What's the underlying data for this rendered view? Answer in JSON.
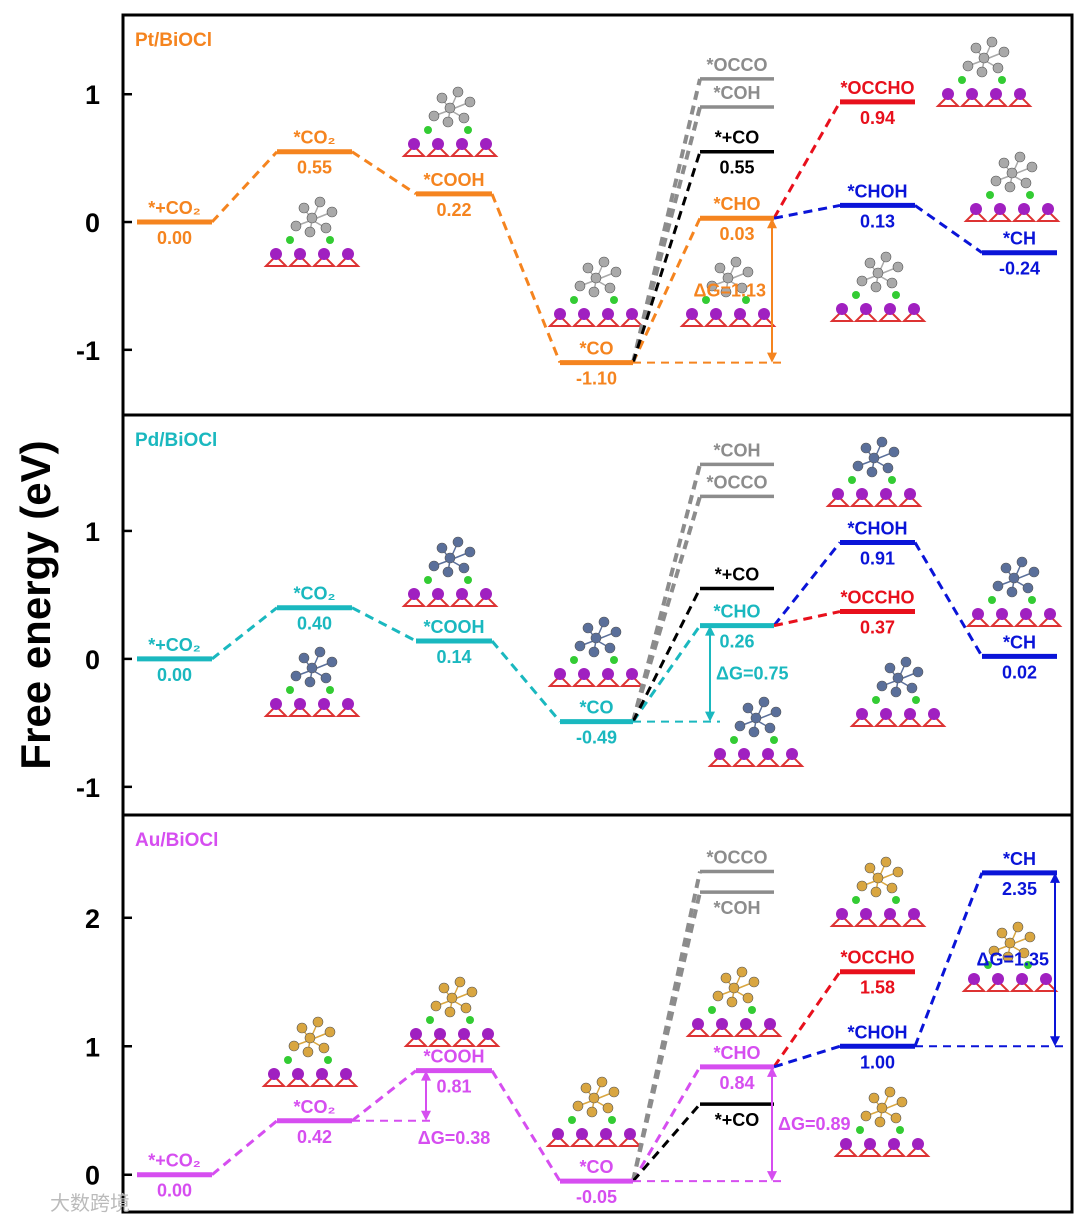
{
  "watermark": "大数跨境",
  "chart_data": {
    "type": "energy-diagram",
    "ylabel": "Free energy (eV)",
    "panels": [
      {
        "title": "Pt/BiOCl",
        "color": "#f5841f",
        "cluster_color": "#a9a9a9",
        "ylim": [
          -1.51,
          1.62
        ],
        "ticks": [
          {
            "v": -1,
            "label": "-1"
          },
          {
            "v": 0,
            "label": "0"
          },
          {
            "v": 1,
            "label": "1"
          }
        ],
        "levels": [
          {
            "id": "s0",
            "label": "*+CO₂",
            "value": 0.0,
            "value_label": "0.00",
            "col": 0,
            "color": "#f5841f",
            "pos": "above"
          },
          {
            "id": "s1",
            "label": "*CO₂",
            "value": 0.55,
            "value_label": "0.55",
            "col": 1,
            "color": "#f5841f",
            "pos": "above"
          },
          {
            "id": "s2",
            "label": "*COOH",
            "value": 0.22,
            "value_label": "0.22",
            "col": 2,
            "color": "#f5841f",
            "pos": "above"
          },
          {
            "id": "s3",
            "label": "*CO",
            "value": -1.1,
            "value_label": "-1.10",
            "col": 3,
            "color": "#f5841f",
            "pos": "above"
          },
          {
            "id": "s4",
            "label": "*CHO",
            "value": 0.03,
            "value_label": "0.03",
            "col": 4,
            "color": "#f5841f",
            "pos": "above"
          },
          {
            "id": "occo",
            "label": "*OCCO",
            "value": 1.12,
            "value_label": null,
            "col": 4,
            "color": "#8c8c8c",
            "pos": "above"
          },
          {
            "id": "coh",
            "label": "*COH",
            "value": 0.9,
            "value_label": null,
            "col": 4,
            "color": "#8c8c8c",
            "pos": "above"
          },
          {
            "id": "pco",
            "label": "*+CO",
            "value": 0.55,
            "value_label": "0.55",
            "col": 4,
            "color": "#000000",
            "pos": "above"
          },
          {
            "id": "occho",
            "label": "*OCCHO",
            "value": 0.94,
            "value_label": "0.94",
            "col": 5,
            "color": "#e8101c",
            "pos": "above"
          },
          {
            "id": "choh",
            "label": "*CHOH",
            "value": 0.13,
            "value_label": "0.13",
            "col": 5,
            "color": "#0a14d8",
            "pos": "above"
          },
          {
            "id": "ch",
            "label": "*CH",
            "value": -0.24,
            "value_label": "-0.24",
            "col": 6,
            "color": "#0a14d8",
            "pos": "above"
          }
        ],
        "links": [
          {
            "from": "s0",
            "to": "s1",
            "color": "#f5841f"
          },
          {
            "from": "s1",
            "to": "s2",
            "color": "#f5841f"
          },
          {
            "from": "s2",
            "to": "s3",
            "color": "#f5841f"
          },
          {
            "from": "s3",
            "to": "s4",
            "color": "#f5841f"
          },
          {
            "from": "s3",
            "to": "occo",
            "color": "#8c8c8c"
          },
          {
            "from": "s3",
            "to": "coh",
            "color": "#8c8c8c"
          },
          {
            "from": "s3",
            "to": "pco",
            "color": "#000000"
          },
          {
            "from": "s4",
            "to": "occho",
            "color": "#e8101c"
          },
          {
            "from": "s4",
            "to": "choh",
            "color": "#0a14d8"
          },
          {
            "from": "choh",
            "to": "ch",
            "color": "#0a14d8"
          }
        ],
        "delta_g": [
          {
            "label": "ΔG=1.13",
            "from": "s3",
            "to": "s4",
            "color": "#f5841f",
            "arrow_at": "col4-right",
            "text_side": "left"
          }
        ]
      },
      {
        "title": "Pd/BiOCl",
        "color": "#1ab8bf",
        "cluster_color": "#5a6f9a",
        "ylim": [
          -1.22,
          1.906
        ],
        "ticks": [
          {
            "v": -1,
            "label": "-1"
          },
          {
            "v": 0,
            "label": "0"
          },
          {
            "v": 1,
            "label": "1"
          }
        ],
        "levels": [
          {
            "id": "s0",
            "label": "*+CO₂",
            "value": 0.0,
            "value_label": "0.00",
            "col": 0,
            "color": "#1ab8bf",
            "pos": "above"
          },
          {
            "id": "s1",
            "label": "*CO₂",
            "value": 0.4,
            "value_label": "0.40",
            "col": 1,
            "color": "#1ab8bf",
            "pos": "above"
          },
          {
            "id": "s2",
            "label": "*COOH",
            "value": 0.14,
            "value_label": "0.14",
            "col": 2,
            "color": "#1ab8bf",
            "pos": "above"
          },
          {
            "id": "s3",
            "label": "*CO",
            "value": -0.49,
            "value_label": "-0.49",
            "col": 3,
            "color": "#1ab8bf",
            "pos": "above"
          },
          {
            "id": "s4",
            "label": "*CHO",
            "value": 0.26,
            "value_label": "0.26",
            "col": 4,
            "color": "#1ab8bf",
            "pos": "above"
          },
          {
            "id": "coh",
            "label": "*COH",
            "value": 1.52,
            "value_label": null,
            "col": 4,
            "color": "#8c8c8c",
            "pos": "above"
          },
          {
            "id": "occo",
            "label": "*OCCO",
            "value": 1.27,
            "value_label": null,
            "col": 4,
            "color": "#8c8c8c",
            "pos": "above"
          },
          {
            "id": "pco",
            "label": "*+CO",
            "value": 0.55,
            "value_label": null,
            "col": 4,
            "color": "#000000",
            "pos": "above"
          },
          {
            "id": "choh",
            "label": "*CHOH",
            "value": 0.91,
            "value_label": "0.91",
            "col": 5,
            "color": "#0a14d8",
            "pos": "above"
          },
          {
            "id": "occho",
            "label": "*OCCHO",
            "value": 0.37,
            "value_label": "0.37",
            "col": 5,
            "color": "#e8101c",
            "pos": "above"
          },
          {
            "id": "ch",
            "label": "*CH",
            "value": 0.02,
            "value_label": "0.02",
            "col": 6,
            "color": "#0a14d8",
            "pos": "above"
          }
        ],
        "links": [
          {
            "from": "s0",
            "to": "s1",
            "color": "#1ab8bf"
          },
          {
            "from": "s1",
            "to": "s2",
            "color": "#1ab8bf"
          },
          {
            "from": "s2",
            "to": "s3",
            "color": "#1ab8bf"
          },
          {
            "from": "s3",
            "to": "s4",
            "color": "#1ab8bf"
          },
          {
            "from": "s3",
            "to": "coh",
            "color": "#8c8c8c"
          },
          {
            "from": "s3",
            "to": "occo",
            "color": "#8c8c8c"
          },
          {
            "from": "s3",
            "to": "pco",
            "color": "#000000"
          },
          {
            "from": "s4",
            "to": "choh",
            "color": "#0a14d8"
          },
          {
            "from": "s4",
            "to": "occho",
            "color": "#e8101c"
          },
          {
            "from": "choh",
            "to": "ch",
            "color": "#0a14d8"
          }
        ],
        "delta_g": [
          {
            "label": "ΔG=0.75",
            "from": "s3",
            "to": "s4",
            "color": "#1ab8bf",
            "arrow_at": "col4-left",
            "text_side": "right"
          }
        ]
      },
      {
        "title": "Au/BiOCl",
        "color": "#d64ef0",
        "cluster_color": "#d9a640",
        "ylim": [
          -0.29,
          2.8
        ],
        "ticks": [
          {
            "v": 0,
            "label": "0"
          },
          {
            "v": 1,
            "label": "1"
          },
          {
            "v": 2,
            "label": "2"
          }
        ],
        "levels": [
          {
            "id": "s0",
            "label": "*+CO₂",
            "value": 0.0,
            "value_label": "0.00",
            "col": 0,
            "color": "#d64ef0",
            "pos": "above"
          },
          {
            "id": "s1",
            "label": "*CO₂",
            "value": 0.42,
            "value_label": "0.42",
            "col": 1,
            "color": "#d64ef0",
            "pos": "above"
          },
          {
            "id": "s2",
            "label": "*COOH",
            "value": 0.81,
            "value_label": "0.81",
            "col": 2,
            "color": "#d64ef0",
            "pos": "above"
          },
          {
            "id": "s3",
            "label": "*CO",
            "value": -0.05,
            "value_label": "-0.05",
            "col": 3,
            "color": "#d64ef0",
            "pos": "above"
          },
          {
            "id": "s4",
            "label": "*CHO",
            "value": 0.84,
            "value_label": "0.84",
            "col": 4,
            "color": "#d64ef0",
            "pos": "above"
          },
          {
            "id": "occo",
            "label": "*OCCO",
            "value": 2.36,
            "value_label": null,
            "col": 4,
            "color": "#8c8c8c",
            "pos": "above"
          },
          {
            "id": "coh",
            "label": "*COH",
            "value": 2.2,
            "value_label": null,
            "col": 4,
            "color": "#8c8c8c",
            "pos": "below"
          },
          {
            "id": "pco",
            "label": "*+CO",
            "value": 0.55,
            "value_label": null,
            "col": 4,
            "color": "#000000",
            "pos": "below"
          },
          {
            "id": "occho",
            "label": "*OCCHO",
            "value": 1.58,
            "value_label": "1.58",
            "col": 5,
            "color": "#e8101c",
            "pos": "above"
          },
          {
            "id": "choh",
            "label": "*CHOH",
            "value": 1.0,
            "value_label": "1.00",
            "col": 5,
            "color": "#0a14d8",
            "pos": "above"
          },
          {
            "id": "ch",
            "label": "*CH",
            "value": 2.35,
            "value_label": "2.35",
            "col": 6,
            "color": "#0a14d8",
            "pos": "above"
          }
        ],
        "links": [
          {
            "from": "s0",
            "to": "s1",
            "color": "#d64ef0"
          },
          {
            "from": "s1",
            "to": "s2",
            "color": "#d64ef0"
          },
          {
            "from": "s2",
            "to": "s3",
            "color": "#d64ef0"
          },
          {
            "from": "s3",
            "to": "s4",
            "color": "#d64ef0"
          },
          {
            "from": "s3",
            "to": "occo",
            "color": "#8c8c8c"
          },
          {
            "from": "s3",
            "to": "coh",
            "color": "#8c8c8c"
          },
          {
            "from": "s3",
            "to": "pco",
            "color": "#000000"
          },
          {
            "from": "s4",
            "to": "occho",
            "color": "#e8101c"
          },
          {
            "from": "s4",
            "to": "choh",
            "color": "#0a14d8"
          },
          {
            "from": "choh",
            "to": "ch",
            "color": "#0a14d8"
          }
        ],
        "delta_g": [
          {
            "label": "ΔG=0.38",
            "from": "s1",
            "to": "s2",
            "color": "#d64ef0",
            "arrow_at": "col2-left",
            "text_side": "below"
          },
          {
            "label": "ΔG=0.89",
            "from": "s3",
            "to": "s4",
            "color": "#d64ef0",
            "arrow_at": "col4-right",
            "text_side": "right"
          },
          {
            "label": "ΔG=1.35",
            "from": "choh",
            "to": "ch",
            "color": "#0a14d8",
            "arrow_at": "col6-right",
            "text_side": "left"
          }
        ]
      }
    ]
  }
}
